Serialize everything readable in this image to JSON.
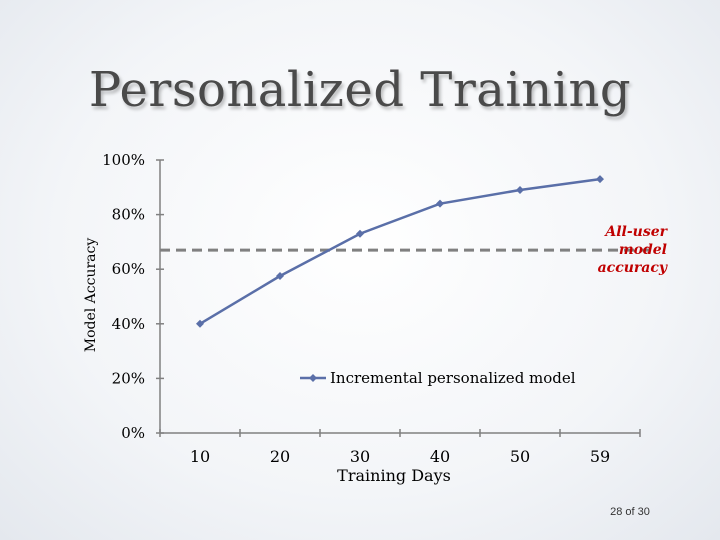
{
  "slide": {
    "title": "Personalized Training",
    "page_number": "28 of 30"
  },
  "colors": {
    "series": "#5a6fa8",
    "reference_line": "#808080",
    "annotation": "#c00000",
    "axis": "#808080"
  },
  "chart_data": {
    "type": "line",
    "xlabel": "Training Days",
    "ylabel": "Model Accuracy",
    "categories": [
      "10",
      "20",
      "30",
      "40",
      "50",
      "59"
    ],
    "ylim": [
      0,
      100
    ],
    "yticks": [
      "0%",
      "20%",
      "40%",
      "60%",
      "80%",
      "100%"
    ],
    "grid": false,
    "legend": "inside-center",
    "series": [
      {
        "name": "Incremental personalized model",
        "values": [
          40,
          57.5,
          73,
          84,
          89,
          93
        ]
      }
    ],
    "reference_line": {
      "value": 67,
      "style": "dashed",
      "label": "All-user model accuracy",
      "label_lines": [
        "All-user",
        "model",
        "accuracy"
      ]
    }
  }
}
